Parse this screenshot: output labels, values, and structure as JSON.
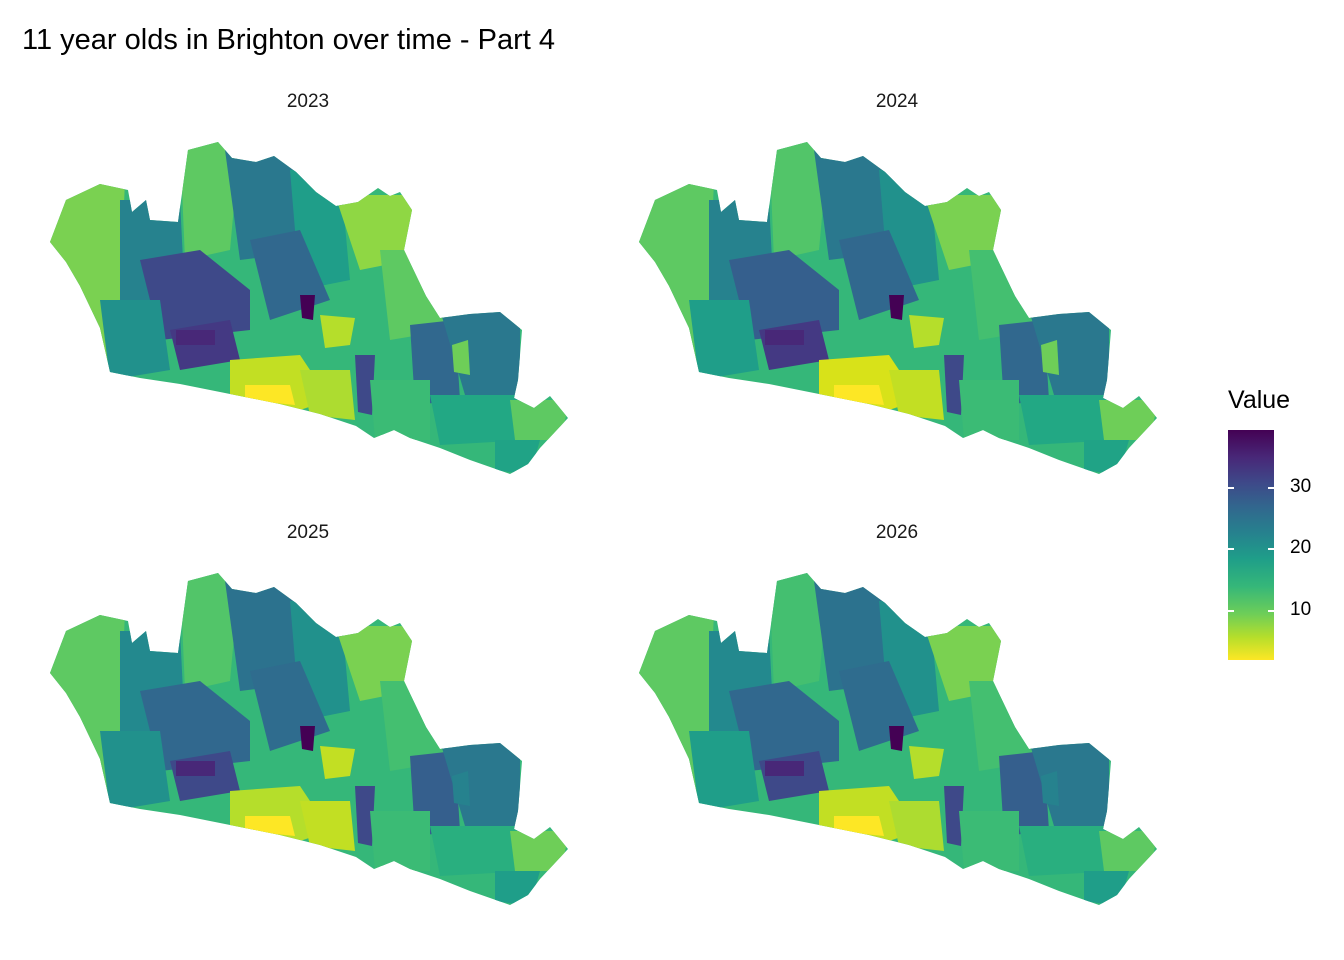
{
  "title": "11 year olds in Brighton over time - Part 4",
  "legend": {
    "title": "Value",
    "ticks": [
      "30",
      "20",
      "10"
    ],
    "colorscale": [
      "#fde725",
      "#b5de2b",
      "#6ece58",
      "#35b779",
      "#1f9e89",
      "#26828e",
      "#31688e",
      "#3e4989",
      "#482878",
      "#440154"
    ]
  },
  "facets": [
    {
      "label": "2023"
    },
    {
      "label": "2024"
    },
    {
      "label": "2025"
    },
    {
      "label": "2026"
    }
  ]
}
